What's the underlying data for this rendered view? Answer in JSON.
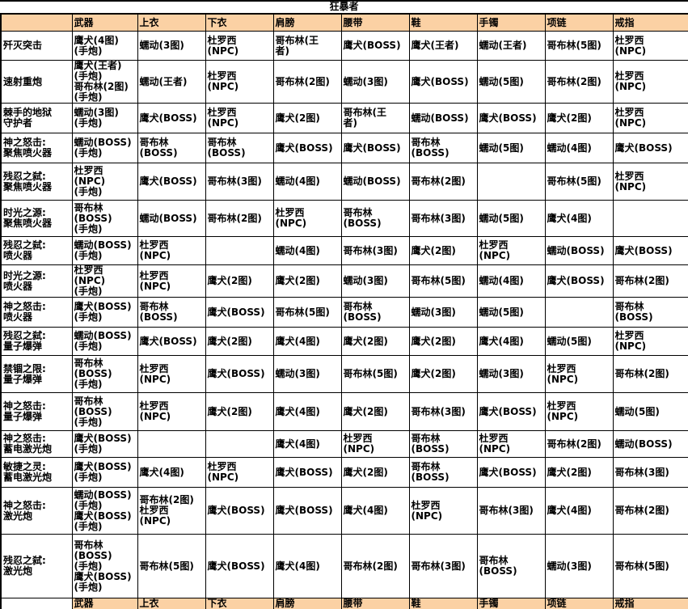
{
  "title": "狂暴者",
  "columns": [
    "武器",
    "上衣",
    "下衣",
    "肩膀",
    "腰带",
    "鞋",
    "手镯",
    "项链",
    "戒指"
  ],
  "footer_columns": [
    "武器",
    "上衣",
    "下衣",
    "肩膀",
    "腰带",
    "鞋",
    "手镯",
    "项链",
    "戒指"
  ],
  "colors": {
    "header_bg": "#fbd1a4",
    "border": "#000000",
    "text": "#000000"
  },
  "rows": [
    {
      "name": "歼灭突击",
      "cells": [
        "鹰犬(4图)\n(手炮)",
        "蠕动(3图)",
        "杜罗西\n(NPC)",
        "哥布林(王\n者)",
        "鹰犬(BOSS)",
        "鹰犬(王者)",
        "蠕动(王者)",
        "哥布林(5图)",
        "杜罗西\n(NPC)"
      ]
    },
    {
      "name": "速射重炮",
      "cells": [
        "鹰犬(王者)\n(手炮)\n哥布林(2图)\n(手炮)",
        "蠕动(王者)",
        "杜罗西\n(NPC)",
        "哥布林(2图)",
        "蠕动(3图)",
        "鹰犬(BOSS)",
        "蠕动(5图)",
        "哥布林(2图)",
        "杜罗西\n(NPC)"
      ]
    },
    {
      "name": "棘手的地狱\n守护者",
      "cells": [
        "蠕动(3图)\n(手炮)",
        "鹰犬(BOSS)",
        "杜罗西\n(NPC)",
        "鹰犬(2图)",
        "哥布林(王\n者)",
        "蠕动(BOSS)",
        "鹰犬(BOSS)",
        "鹰犬(2图)",
        "杜罗西\n(NPC)"
      ]
    },
    {
      "name": "神之怒击:\n聚焦喷火器",
      "cells": [
        "蠕动(BOSS)\n(手炮)",
        "哥布林\n(BOSS)",
        "哥布林\n(BOSS)",
        "鹰犬(BOSS)",
        "鹰犬(BOSS)",
        "哥布林\n(BOSS)",
        "蠕动(5图)",
        "蠕动(4图)",
        "鹰犬(BOSS)"
      ]
    },
    {
      "name": "残忍之弑:\n聚焦喷火器",
      "cells": [
        "杜罗西\n(NPC)\n(手炮)",
        "鹰犬(BOSS)",
        "哥布林(3图)",
        "蠕动(4图)",
        "蠕动(BOSS)",
        "哥布林(2图)",
        "",
        "哥布林(5图)",
        "杜罗西\n(NPC)"
      ]
    },
    {
      "name": "时光之源:\n聚焦喷火器",
      "cells": [
        "哥布林\n(BOSS)\n(手炮)",
        "蠕动(BOSS)",
        "哥布林(2图)",
        "杜罗西\n(NPC)",
        "哥布林\n(BOSS)",
        "哥布林(3图)",
        "蠕动(5图)",
        "鹰犬(4图)",
        ""
      ]
    },
    {
      "name": "残忍之弑:\n喷火器",
      "cells": [
        "蠕动(BOSS)\n(手炮)",
        "杜罗西\n(NPC)",
        "",
        "蠕动(4图)",
        "哥布林(3图)",
        "鹰犬(2图)",
        "杜罗西\n(NPC)",
        "蠕动(BOSS)",
        "鹰犬(BOSS)"
      ]
    },
    {
      "name": "时光之源:\n喷火器",
      "cells": [
        "杜罗西\n(NPC)\n(手炮)",
        "杜罗西\n(NPC)",
        "鹰犬(2图)",
        "鹰犬(2图)",
        "蠕动(3图)",
        "哥布林(5图)",
        "蠕动(4图)",
        "鹰犬(BOSS)",
        "哥布林(2图)"
      ]
    },
    {
      "name": "神之怒击:\n喷火器",
      "cells": [
        "鹰犬(BOSS)\n(手炮)",
        "哥布林\n(BOSS)",
        "鹰犬(BOSS)",
        "哥布林(5图)",
        "哥布林\n(BOSS)",
        "蠕动(3图)",
        "蠕动(5图)",
        "",
        "哥布林\n(BOSS)"
      ]
    },
    {
      "name": "残忍之弑:\n量子爆弹",
      "cells": [
        "蠕动(BOSS)\n(手炮)",
        "鹰犬(BOSS)",
        "鹰犬(2图)",
        "鹰犬(4图)",
        "鹰犬(2图)",
        "鹰犬(2图)",
        "鹰犬(4图)",
        "蠕动(5图)",
        "杜罗西\n(NPC)"
      ]
    },
    {
      "name": "禁锢之限:\n量子爆弹",
      "cells": [
        "哥布林\n(BOSS)\n(手炮)",
        "杜罗西\n(NPC)",
        "鹰犬(BOSS)",
        "蠕动(3图)",
        "哥布林(5图)",
        "鹰犬(2图)",
        "蠕动(3图)",
        "杜罗西\n(NPC)",
        "哥布林(2图)"
      ]
    },
    {
      "name": "神之怒击:\n量子爆弹",
      "cells": [
        "哥布林\n(BOSS)\n(手炮)",
        "杜罗西\n(NPC)",
        "鹰犬(2图)",
        "鹰犬(4图)",
        "鹰犬(2图)",
        "哥布林(3图)",
        "鹰犬(BOSS)",
        "杜罗西\n(NPC)",
        "蠕动(5图)"
      ]
    },
    {
      "name": "神之怒击:\n蓄电激光炮",
      "cells": [
        "鹰犬(BOSS)\n(手炮)",
        "",
        "",
        "鹰犬(4图)",
        "杜罗西\n(NPC)",
        "哥布林\n(BOSS)",
        "杜罗西\n(NPC)",
        "哥布林(2图)",
        "蠕动(BOSS)"
      ]
    },
    {
      "name": "敏捷之灵:\n蓄电激光炮",
      "cells": [
        "鹰犬(BOSS)\n(手炮)",
        "鹰犬(4图)",
        "杜罗西\n(NPC)",
        "鹰犬(BOSS)",
        "鹰犬(2图)",
        "哥布林\n(BOSS)",
        "鹰犬(BOSS)",
        "鹰犬(2图)",
        "哥布林(3图)"
      ]
    },
    {
      "name": "神之怒击:\n激光炮",
      "cells": [
        "蠕动(BOSS)\n(手炮)\n鹰犬(BOSS)\n(手炮)",
        "哥布林(2图)\n杜罗西\n(NPC)",
        "鹰犬(BOSS)",
        "鹰犬(BOSS)",
        "鹰犬(4图)",
        "杜罗西\n(NPC)",
        "哥布林(3图)",
        "鹰犬(4图)",
        "哥布林(2图)"
      ]
    },
    {
      "name": "残忍之弑:\n激光炮",
      "cells": [
        "哥布林\n(BOSS)\n(手炮)\n鹰犬(BOSS)\n(手炮)",
        "哥布林(5图)",
        "鹰犬(BOSS)",
        "鹰犬(4图)",
        "哥布林(2图)",
        "哥布林(3图)",
        "哥布林\n(BOSS)",
        "蠕动(3图)",
        "哥布林(5图)"
      ]
    }
  ]
}
